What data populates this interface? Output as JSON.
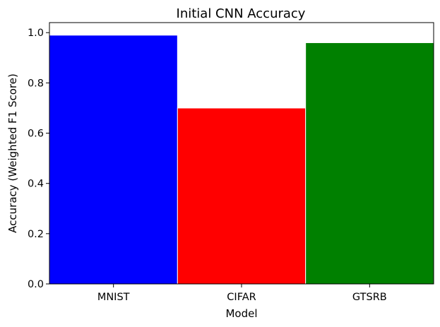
{
  "chart_data": {
    "type": "bar",
    "title": "Initial CNN Accuracy",
    "xlabel": "Model",
    "ylabel": "Accuracy (Weighted F1 Score)",
    "categories": [
      "MNIST",
      "CIFAR",
      "GTSRB"
    ],
    "values": [
      0.99,
      0.7,
      0.96
    ],
    "colors": [
      "#0000ff",
      "#ff0000",
      "#008000"
    ],
    "ylim": [
      0,
      1.04
    ],
    "yticks": [
      "0.0",
      "0.2",
      "0.4",
      "0.6",
      "0.8",
      "1.0"
    ],
    "grid": false,
    "legend": "none"
  }
}
